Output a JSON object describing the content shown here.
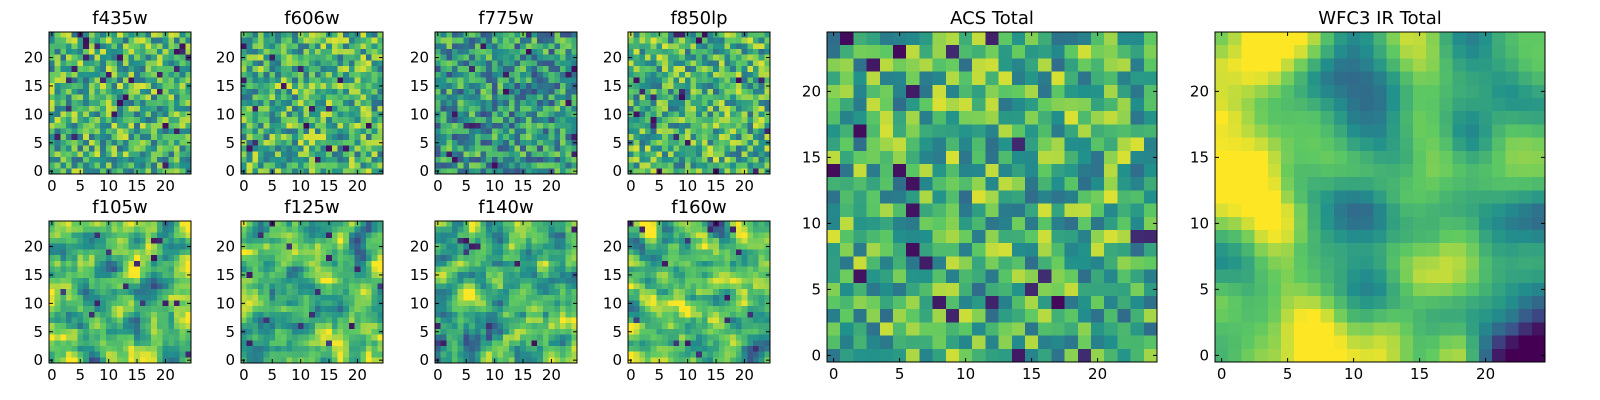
{
  "figure": {
    "background": "#ffffff",
    "colormap": "viridis",
    "colormap_colors": [
      "#440154",
      "#3b528b",
      "#21918c",
      "#5ec962",
      "#fde725"
    ]
  },
  "chart_data": [
    {
      "type": "heatmap",
      "title": "f435w",
      "xlabel": "",
      "ylabel": "",
      "xlim": [
        0,
        24
      ],
      "ylim": [
        0,
        24
      ],
      "grid": false,
      "x_ticks": [
        "0",
        "5",
        "10",
        "15",
        "20"
      ],
      "y_ticks": [
        "0",
        "5",
        "10",
        "15",
        "20"
      ],
      "cells": "25x25 pixel grid, viridis colormap, noisy mostly green-yellow"
    },
    {
      "type": "heatmap",
      "title": "f606w",
      "xlabel": "",
      "ylabel": "",
      "xlim": [
        0,
        24
      ],
      "ylim": [
        0,
        24
      ],
      "grid": false,
      "x_ticks": [
        "0",
        "5",
        "10",
        "15",
        "20"
      ],
      "y_ticks": [
        "0",
        "5",
        "10",
        "15",
        "20"
      ],
      "cells": "25x25 pixel grid, viridis colormap, noisy mostly green-yellow"
    },
    {
      "type": "heatmap",
      "title": "f775w",
      "xlabel": "",
      "ylabel": "",
      "xlim": [
        0,
        24
      ],
      "ylim": [
        0,
        24
      ],
      "grid": false,
      "x_ticks": [
        "0",
        "5",
        "10",
        "15",
        "20"
      ],
      "y_ticks": [
        "0",
        "5",
        "10",
        "15",
        "20"
      ],
      "cells": "25x25 pixel grid, viridis colormap, noisy mostly teal-green"
    },
    {
      "type": "heatmap",
      "title": "f850lp",
      "xlabel": "",
      "ylabel": "",
      "xlim": [
        0,
        24
      ],
      "ylim": [
        0,
        24
      ],
      "grid": false,
      "x_ticks": [
        "0",
        "5",
        "10",
        "15",
        "20"
      ],
      "y_ticks": [
        "0",
        "5",
        "10",
        "15",
        "20"
      ],
      "cells": "25x25 pixel grid, viridis colormap, noisy green-yellow"
    },
    {
      "type": "heatmap",
      "title": "f105w",
      "xlabel": "",
      "ylabel": "",
      "xlim": [
        0,
        24
      ],
      "ylim": [
        0,
        24
      ],
      "grid": false,
      "x_ticks": [
        "0",
        "5",
        "10",
        "15",
        "20"
      ],
      "y_ticks": [
        "0",
        "5",
        "10",
        "15",
        "20"
      ],
      "cells": "25x25 pixel grid, viridis colormap, smooth green-yellow with dark spots lower right"
    },
    {
      "type": "heatmap",
      "title": "f125w",
      "xlabel": "",
      "ylabel": "",
      "xlim": [
        0,
        24
      ],
      "ylim": [
        0,
        24
      ],
      "grid": false,
      "x_ticks": [
        "0",
        "5",
        "10",
        "15",
        "20"
      ],
      "y_ticks": [
        "0",
        "5",
        "10",
        "15",
        "20"
      ],
      "cells": "25x25 pixel grid, viridis colormap, smooth green-yellow with dark spots"
    },
    {
      "type": "heatmap",
      "title": "f140w",
      "xlabel": "",
      "ylabel": "",
      "xlim": [
        0,
        24
      ],
      "ylim": [
        0,
        24
      ],
      "grid": false,
      "x_ticks": [
        "0",
        "5",
        "10",
        "15",
        "20"
      ],
      "y_ticks": [
        "0",
        "5",
        "10",
        "15",
        "20"
      ],
      "cells": "25x25 pixel grid, viridis colormap, smooth green with dark spots"
    },
    {
      "type": "heatmap",
      "title": "f160w",
      "xlabel": "",
      "ylabel": "",
      "xlim": [
        0,
        24
      ],
      "ylim": [
        0,
        24
      ],
      "grid": false,
      "x_ticks": [
        "0",
        "5",
        "10",
        "15",
        "20"
      ],
      "y_ticks": [
        "0",
        "5",
        "10",
        "15",
        "20"
      ],
      "cells": "25x25 pixel grid, viridis colormap, smooth yellow-green with dark spots on right edge"
    },
    {
      "type": "heatmap",
      "title": "ACS Total",
      "xlabel": "",
      "ylabel": "",
      "xlim": [
        0,
        24
      ],
      "ylim": [
        0,
        24
      ],
      "grid": false,
      "x_ticks": [
        "0",
        "5",
        "10",
        "15",
        "20"
      ],
      "y_ticks": [
        "0",
        "5",
        "10",
        "15",
        "20"
      ],
      "cells": "25x25 pixel grid, viridis colormap, noisy green-yellow with scattered dark pixels"
    },
    {
      "type": "heatmap",
      "title": "WFC3 IR Total",
      "xlabel": "",
      "ylabel": "",
      "xlim": [
        0,
        24
      ],
      "ylim": [
        0,
        24
      ],
      "grid": false,
      "x_ticks": [
        "0",
        "5",
        "10",
        "15",
        "20"
      ],
      "y_ticks": [
        "0",
        "5",
        "10",
        "15",
        "20"
      ],
      "cells": "25x25 pixel grid, viridis colormap, smooth yellow-green left, dark purple region lower right"
    }
  ]
}
